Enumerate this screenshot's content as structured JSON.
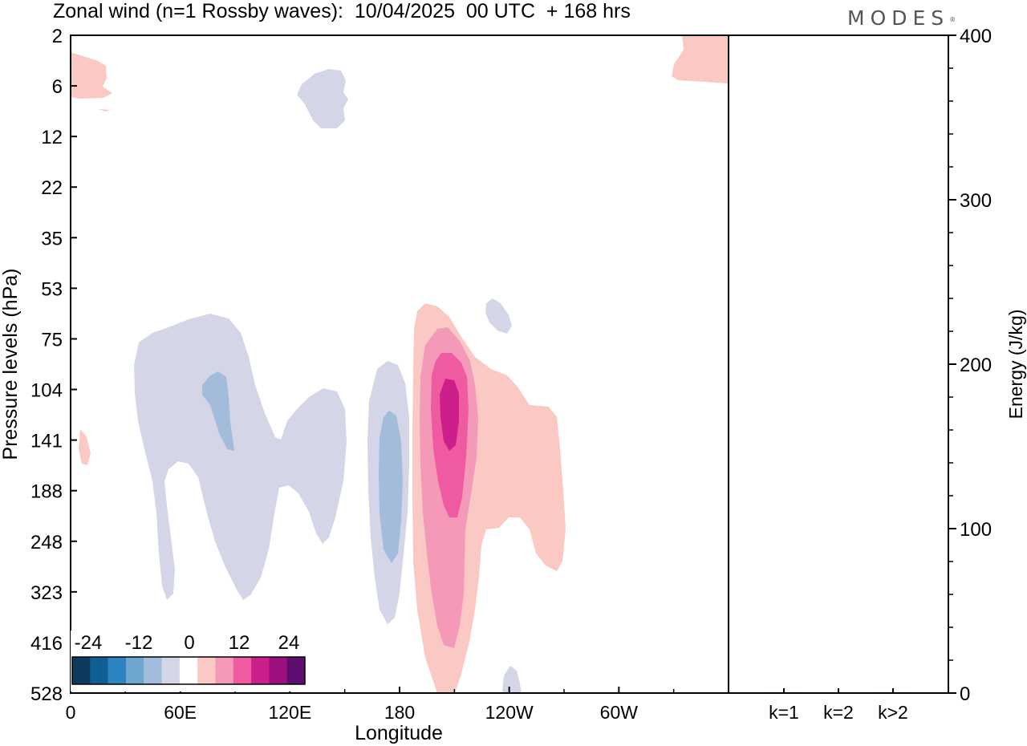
{
  "title": "Zonal wind (n=1 Rossby waves):  10/04/2025  00 UTC  + 168 hrs",
  "brand": "MODES",
  "chart_data": [
    {
      "type": "heatmap",
      "title": "Zonal wind (n=1 Rossby waves):  10/04/2025  00 UTC  + 168 hrs",
      "xlabel": "Longitude",
      "ylabel": "Pressure levels (hPa)",
      "x_ticks": [
        "0",
        "60E",
        "120E",
        "180",
        "120W",
        "60W"
      ],
      "y_ticks": [
        "2",
        "6",
        "12",
        "22",
        "35",
        "53",
        "75",
        "104",
        "141",
        "188",
        "248",
        "323",
        "416",
        "528"
      ],
      "colorbar": {
        "labels": [
          "-24",
          "-12",
          "0",
          "12",
          "24"
        ],
        "levels": [
          -24,
          -20,
          -16,
          -12,
          -8,
          -4,
          0,
          4,
          8,
          12,
          16,
          20,
          24
        ],
        "colors": [
          "#0b3a5c",
          "#0f5f94",
          "#2b83c2",
          "#6ea6cf",
          "#a3bcdc",
          "#d4d6e8",
          "#ffffff",
          "#fac9c4",
          "#f49ab8",
          "#ef5aa0",
          "#cc1f8b",
          "#9c0f7e",
          "#5e0c6e"
        ]
      },
      "features": [
        {
          "sign": "negative",
          "description_level": -4,
          "longitude": "40E-150E",
          "pressure": "60-330 hPa"
        },
        {
          "sign": "negative",
          "description_level": -8,
          "longitude": "~75E",
          "pressure": "100-190 hPa"
        },
        {
          "sign": "negative",
          "description_level": -8,
          "longitude": "~175E",
          "pressure": "115-280 hPa"
        },
        {
          "sign": "positive",
          "description_level": 20,
          "longitude": "~160W",
          "pressure": "95-150 hPa"
        },
        {
          "sign": "positive",
          "description_level": 16,
          "longitude": "~160W",
          "pressure": "75-250 hPa"
        },
        {
          "sign": "positive",
          "description_level": 4,
          "longitude": "170W-95W",
          "pressure": "55-528 hPa"
        }
      ]
    },
    {
      "type": "bar",
      "categories": [
        "k=1",
        "k=2",
        "k>2"
      ],
      "values": [
        0.5,
        0.2,
        0.5
      ],
      "ylabel": "Energy (J/kg)",
      "y_ticks": [
        "0",
        "100",
        "200",
        "300",
        "400"
      ],
      "ylim": [
        0,
        400
      ]
    }
  ]
}
